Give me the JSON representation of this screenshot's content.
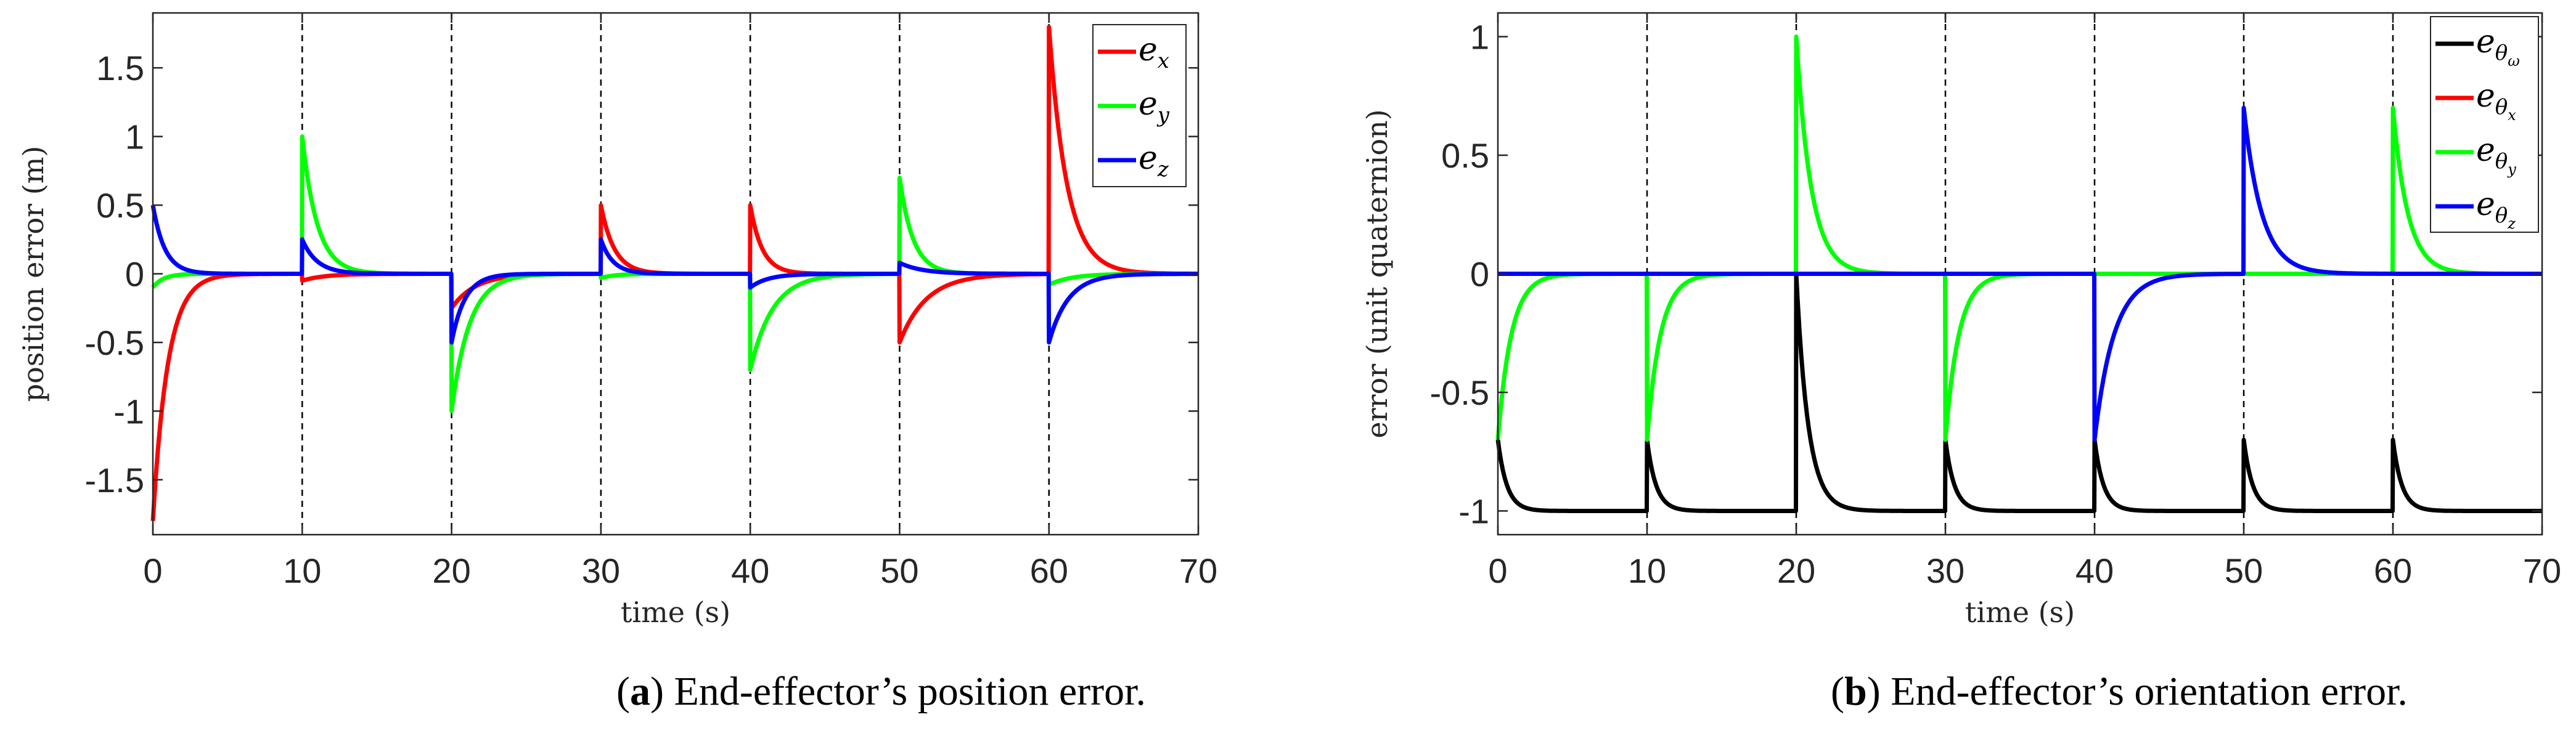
{
  "chart_data": [
    {
      "type": "line",
      "panel": "a",
      "xlabel": "time (s)",
      "ylabel": "position error (m)",
      "xlim": [
        0,
        70
      ],
      "ylim": [
        -1.9,
        1.9
      ],
      "xticks": [
        0,
        10,
        20,
        30,
        40,
        50,
        60,
        70
      ],
      "xtick_labels": [
        "0",
        "10",
        "20",
        "30",
        "40",
        "50",
        "60",
        "70"
      ],
      "yticks": [
        -1.5,
        -1,
        -0.5,
        0,
        0.5,
        1,
        1.5
      ],
      "ytick_labels": [
        "-1.5",
        "-1",
        "-0.5",
        "0",
        "0.5",
        "1",
        "1.5"
      ],
      "vlines": [
        10,
        20,
        30,
        40,
        50,
        60
      ],
      "legend_position": "top-right",
      "baseline": 0,
      "series": [
        {
          "name": "e_x",
          "label": {
            "main": "e",
            "sub": "x",
            "subsub": ""
          },
          "color": "#ff0000",
          "events": [
            [
              0,
              -1.8,
              1.0
            ],
            [
              10,
              -0.05,
              1.5
            ],
            [
              20,
              -0.25,
              1.6
            ],
            [
              30,
              0.5,
              0.9
            ],
            [
              40,
              0.5,
              0.8
            ],
            [
              50,
              -0.5,
              1.8
            ],
            [
              60,
              1.8,
              1.2
            ]
          ]
        },
        {
          "name": "e_y",
          "label": {
            "main": "e",
            "sub": "y",
            "subsub": ""
          },
          "color": "#00ff00",
          "events": [
            [
              0,
              -0.1,
              0.7
            ],
            [
              10,
              1.0,
              1.0
            ],
            [
              20,
              -1.0,
              1.2
            ],
            [
              30,
              -0.03,
              1.0
            ],
            [
              40,
              -0.7,
              1.5
            ],
            [
              50,
              0.7,
              0.9
            ],
            [
              60,
              -0.08,
              1.5
            ]
          ]
        },
        {
          "name": "e_z",
          "label": {
            "main": "e",
            "sub": "z",
            "subsub": ""
          },
          "color": "#0000ff",
          "events": [
            [
              0,
              0.5,
              0.8
            ],
            [
              10,
              0.25,
              1.0
            ],
            [
              20,
              -0.5,
              0.9
            ],
            [
              30,
              0.25,
              0.8
            ],
            [
              40,
              -0.1,
              1.2
            ],
            [
              50,
              0.08,
              1.5
            ],
            [
              60,
              -0.5,
              1.3
            ]
          ]
        }
      ],
      "caption": {
        "letter": "a",
        "text": " End-effector’s position error."
      }
    },
    {
      "type": "line",
      "panel": "b",
      "xlabel": "time (s)",
      "ylabel": "error (unit quaternion)",
      "xlim": [
        0,
        70
      ],
      "ylim": [
        -1.1,
        1.1
      ],
      "xticks": [
        0,
        10,
        20,
        30,
        40,
        50,
        60,
        70
      ],
      "xtick_labels": [
        "0",
        "10",
        "20",
        "30",
        "40",
        "50",
        "60",
        "70"
      ],
      "yticks": [
        -1,
        -0.5,
        0,
        0.5,
        1
      ],
      "ytick_labels": [
        "-1",
        "-0.5",
        "0",
        "0.5",
        "1"
      ],
      "vlines": [
        10,
        20,
        30,
        40,
        50,
        60
      ],
      "legend_position": "top-right",
      "series": [
        {
          "name": "e_theta_w",
          "label": {
            "main": "e",
            "sub": "θ",
            "subsub": "ω"
          },
          "color": "#000000",
          "baseline": -1,
          "events": [
            [
              0,
              0.3,
              0.6
            ],
            [
              10,
              0.3,
              0.6
            ],
            [
              20,
              1.0,
              0.8
            ],
            [
              30,
              0.3,
              0.6
            ],
            [
              40,
              0.3,
              0.6
            ],
            [
              50,
              0.3,
              0.6
            ],
            [
              60,
              0.3,
              0.6
            ]
          ]
        },
        {
          "name": "e_theta_x",
          "label": {
            "main": "e",
            "sub": "θ",
            "subsub": "x"
          },
          "color": "#ff0000",
          "baseline": 0,
          "events": []
        },
        {
          "name": "e_theta_y",
          "label": {
            "main": "e",
            "sub": "θ",
            "subsub": "y"
          },
          "color": "#00ff00",
          "baseline": 0,
          "events": [
            [
              0,
              -0.7,
              0.9
            ],
            [
              10,
              -0.7,
              0.9
            ],
            [
              20,
              1.0,
              1.0
            ],
            [
              30,
              -0.7,
              0.9
            ],
            [
              60,
              0.7,
              1.0
            ]
          ]
        },
        {
          "name": "e_theta_z",
          "label": {
            "main": "e",
            "sub": "θ",
            "subsub": "z"
          },
          "color": "#0000ff",
          "baseline": 0,
          "events": [
            [
              40,
              -0.7,
              1.3
            ],
            [
              50,
              0.7,
              1.2
            ]
          ]
        }
      ],
      "caption": {
        "letter": "b",
        "text": " End-effector’s orientation error."
      }
    }
  ]
}
